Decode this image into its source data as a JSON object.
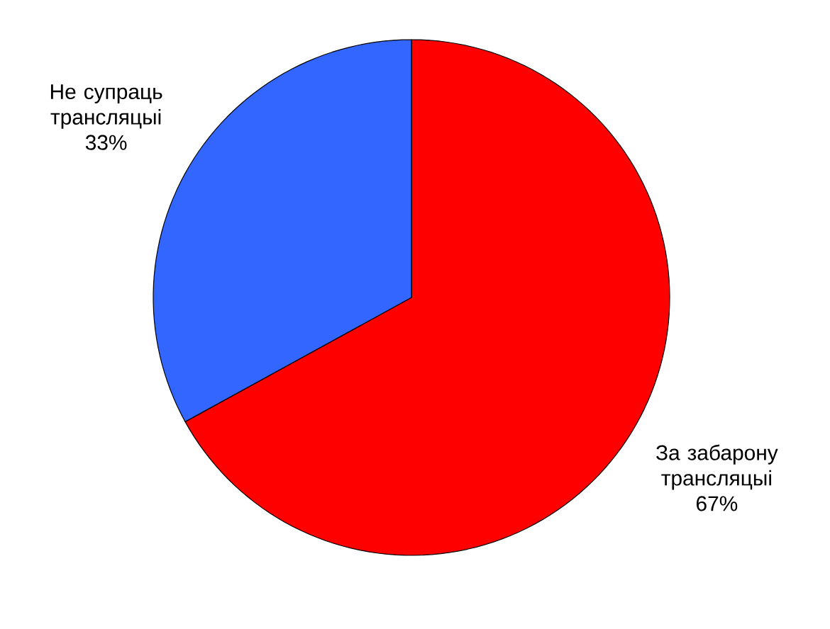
{
  "chart_data": {
    "type": "pie",
    "categories": [
      "За забарону трансляцыі",
      "Не супраць трансляцыі"
    ],
    "values": [
      67,
      33
    ],
    "colors": [
      "#ff0000",
      "#3366ff"
    ],
    "value_labels": [
      "67%",
      "33%"
    ]
  }
}
